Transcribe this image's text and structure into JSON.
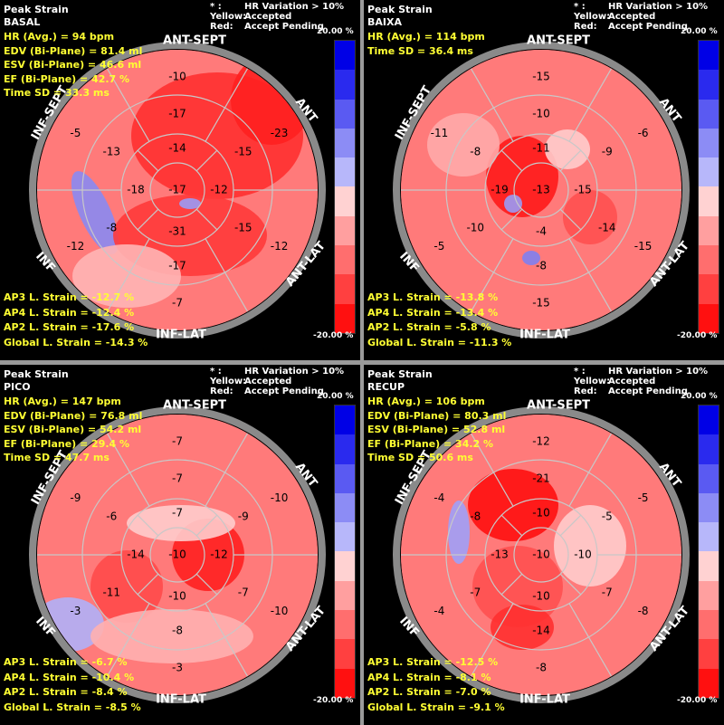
{
  "scale": {
    "max_label": "20.00 %",
    "min_label": "-20.00 %",
    "colors": [
      "#0000e6",
      "#2a2aee",
      "#5a5af2",
      "#8c8cf5",
      "#b7b7fa",
      "#ffd2d2",
      "#ff9f9f",
      "#ff6e6e",
      "#ff4040",
      "#ff1010"
    ]
  },
  "legend": {
    "line1_key": "* :",
    "line1_val": "HR Variation > 10%",
    "line2_key": "Yellow:",
    "line2_val": "Accepted",
    "line3_key": "Red:",
    "line3_val": "Accept Pending"
  },
  "panels": [
    {
      "title": "Peak Strain",
      "stage": "BASAL",
      "stats": [
        "HR (Avg.) = 94 bpm",
        "EDV (Bi-Plane) = 81.4 ml",
        "ESV (Bi-Plane) = 46.6 ml",
        "EF (Bi-Plane) = 42.7 %",
        "Time SD = 33.3 ms"
      ],
      "strains": [
        "AP3 L. Strain = -12.7 %",
        "AP4 L. Strain = -12.4 %",
        "AP2 L. Strain = -17.6 %",
        "Global L. Strain = -14.3 %"
      ],
      "walls": {
        "top": "ANT-SEPT",
        "right_top": "ANT",
        "right_bottom": "ANT-LAT",
        "bottom": "INF-LAT",
        "left_bottom": "INF",
        "left_top": "INF-SEPT"
      },
      "segments": {
        "outer": [
          "-10",
          "-23",
          "-12",
          "-7",
          "-12",
          "-5"
        ],
        "mid": [
          "-17",
          "-15",
          "-15",
          "-17",
          "-8",
          "-13"
        ],
        "inner": [
          "-14",
          "-12",
          "-31",
          "-18"
        ],
        "apex": "-17"
      }
    },
    {
      "title": "Peak Strain",
      "stage": "BAIXA",
      "stats": [
        "HR (Avg.) = 114 bpm",
        "Time SD = 36.4 ms"
      ],
      "strains": [
        "AP3 L. Strain = -13.8 %",
        "AP4 L. Strain = -13.4 %",
        "AP2 L. Strain = -5.8 %",
        "Global L. Strain = -11.3 %"
      ],
      "walls": {
        "top": "ANT-SEPT",
        "right_top": "ANT",
        "right_bottom": "ANT-LAT",
        "bottom": "INF-LAT",
        "left_bottom": "INF",
        "left_top": "INF-SEPT"
      },
      "segments": {
        "outer": [
          "-15",
          "-6",
          "-15",
          "-15",
          "-5",
          "-11"
        ],
        "mid": [
          "-10",
          "-9",
          "-14",
          "-8",
          "-10",
          "-8"
        ],
        "inner": [
          "-11",
          "-15",
          "-4",
          "-19"
        ],
        "apex": "-13"
      }
    },
    {
      "title": "Peak Strain",
      "stage": "PICO",
      "stats": [
        "HR (Avg.) = 147 bpm",
        "EDV (Bi-Plane) = 76.8 ml",
        "ESV (Bi-Plane) = 54.2 ml",
        "EF (Bi-Plane) = 29.4 %",
        "Time SD = 47.7 ms"
      ],
      "strains": [
        "AP3 L. Strain = -6.7 %",
        "AP4 L. Strain = -10.4 %",
        "AP2 L. Strain = -8.4 %",
        "Global L. Strain = -8.5 %"
      ],
      "walls": {
        "top": "ANT-SEPT",
        "right_top": "ANT",
        "right_bottom": "ANT-LAT",
        "bottom": "INF-LAT",
        "left_bottom": "INF",
        "left_top": "INF-SEPT"
      },
      "segments": {
        "outer": [
          "-7",
          "-10",
          "-10",
          "-3",
          "-3",
          "-9"
        ],
        "mid": [
          "-7",
          "-9",
          "-7",
          "-8",
          "-11",
          "-6"
        ],
        "inner": [
          "-7",
          "-12",
          "-10",
          "-14"
        ],
        "apex": "-10"
      }
    },
    {
      "title": "Peak Strain",
      "stage": "RECUP",
      "stats": [
        "HR (Avg.) = 106 bpm",
        "EDV (Bi-Plane) = 80.3 ml",
        "ESV (Bi-Plane) = 52.8 ml",
        "EF (Bi-Plane) = 34.2 %",
        "Time SD = 50.6 ms"
      ],
      "strains": [
        "AP3 L. Strain = -12.5 %",
        "AP4 L. Strain = -8.1 %",
        "AP2 L. Strain = -7.0 %",
        "Global L. Strain = -9.1 %"
      ],
      "walls": {
        "top": "ANT-SEPT",
        "right_top": "ANT",
        "right_bottom": "ANT-LAT",
        "bottom": "INF-LAT",
        "left_bottom": "INF",
        "left_top": "INF-SEPT"
      },
      "segments": {
        "outer": [
          "-12",
          "-5",
          "-8",
          "-8",
          "-4",
          "-4"
        ],
        "mid": [
          "-21",
          "-5",
          "-7",
          "-14",
          "-7",
          "-8"
        ],
        "inner": [
          "-10",
          "-10",
          "-10",
          "-13"
        ],
        "apex": "-10"
      }
    }
  ]
}
